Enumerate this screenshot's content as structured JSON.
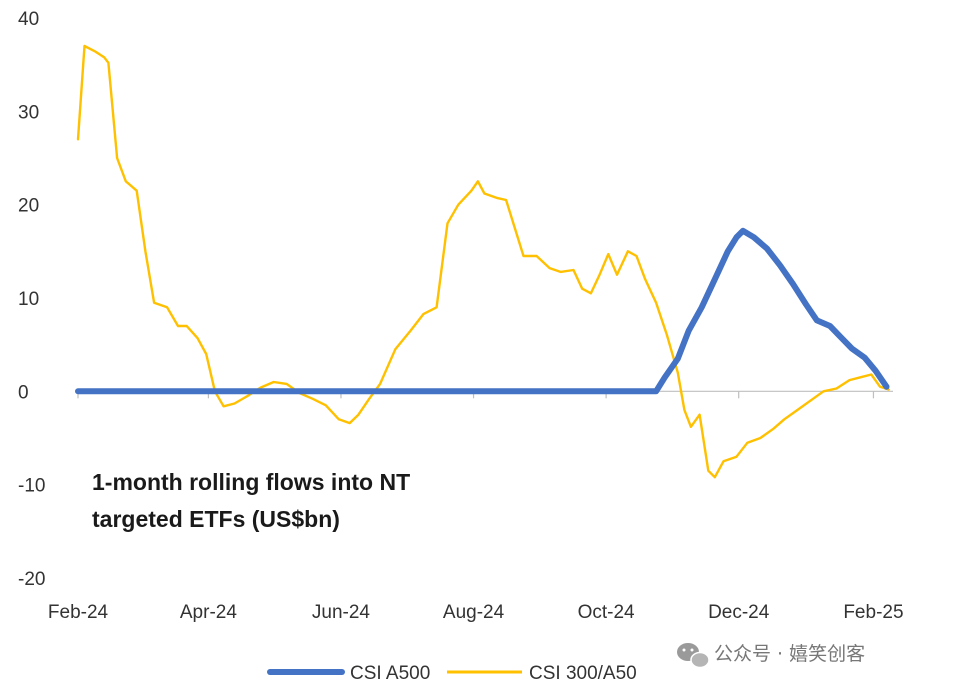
{
  "chart_data": {
    "type": "line",
    "title": "",
    "xlabel": "",
    "ylabel": "",
    "annotation_lines": [
      "1-month rolling flows into NT",
      "targeted ETFs (US$bn)"
    ],
    "ylim": [
      -20,
      40
    ],
    "yticks": [
      40,
      30,
      20,
      10,
      0,
      -10,
      -20
    ],
    "ytick_labels": [
      "40",
      "30",
      "20",
      "10",
      "0",
      "-10",
      "-20"
    ],
    "xlim": [
      "2024-02-01",
      "2025-02-10"
    ],
    "xticks": [
      "2024-02-01",
      "2024-04-01",
      "2024-06-01",
      "2024-08-01",
      "2024-10-01",
      "2024-12-01",
      "2025-02-01"
    ],
    "xtick_labels": [
      "Feb-24",
      "Apr-24",
      "Jun-24",
      "Aug-24",
      "Oct-24",
      "Dec-24",
      "Feb-25"
    ],
    "grid": false,
    "legend_position": "bottom",
    "series": [
      {
        "name": "CSI A500",
        "color": "#4472C4",
        "points": [
          [
            "2024-02-01",
            0
          ],
          [
            "2024-10-24",
            0
          ],
          [
            "2024-10-28",
            1.5
          ],
          [
            "2024-11-03",
            3.5
          ],
          [
            "2024-11-08",
            6.5
          ],
          [
            "2024-11-14",
            9
          ],
          [
            "2024-11-20",
            12
          ],
          [
            "2024-11-26",
            15
          ],
          [
            "2024-11-30",
            16.5
          ],
          [
            "2024-12-03",
            17.2
          ],
          [
            "2024-12-08",
            16.5
          ],
          [
            "2024-12-14",
            15.3
          ],
          [
            "2024-12-20",
            13.5
          ],
          [
            "2024-12-26",
            11.5
          ],
          [
            "2025-01-01",
            9.3
          ],
          [
            "2025-01-06",
            7.6
          ],
          [
            "2025-01-12",
            7
          ],
          [
            "2025-01-17",
            5.8
          ],
          [
            "2025-01-22",
            4.6
          ],
          [
            "2025-01-28",
            3.6
          ],
          [
            "2025-02-02",
            2.2
          ],
          [
            "2025-02-07",
            0.5
          ]
        ]
      },
      {
        "name": "CSI 300/A50",
        "color": "#FFC000",
        "points": [
          [
            "2024-02-01",
            27
          ],
          [
            "2024-02-04",
            37
          ],
          [
            "2024-02-09",
            36.4
          ],
          [
            "2024-02-13",
            35.8
          ],
          [
            "2024-02-15",
            35.2
          ],
          [
            "2024-02-19",
            25
          ],
          [
            "2024-02-23",
            22.5
          ],
          [
            "2024-02-28",
            21.5
          ],
          [
            "2024-03-03",
            15
          ],
          [
            "2024-03-07",
            9.5
          ],
          [
            "2024-03-13",
            9
          ],
          [
            "2024-03-18",
            7
          ],
          [
            "2024-03-22",
            7
          ],
          [
            "2024-03-27",
            5.7
          ],
          [
            "2024-03-31",
            4
          ],
          [
            "2024-04-04",
            0
          ],
          [
            "2024-04-08",
            -1.6
          ],
          [
            "2024-04-13",
            -1.3
          ],
          [
            "2024-04-19",
            -0.5
          ],
          [
            "2024-04-25",
            0.4
          ],
          [
            "2024-05-01",
            1
          ],
          [
            "2024-05-07",
            0.8
          ],
          [
            "2024-05-13",
            -0.2
          ],
          [
            "2024-05-19",
            -0.8
          ],
          [
            "2024-05-25",
            -1.5
          ],
          [
            "2024-05-31",
            -3
          ],
          [
            "2024-06-05",
            -3.4
          ],
          [
            "2024-06-09",
            -2.5
          ],
          [
            "2024-06-14",
            -0.8
          ],
          [
            "2024-06-19",
            0.8
          ],
          [
            "2024-06-26",
            4.5
          ],
          [
            "2024-07-03",
            6.5
          ],
          [
            "2024-07-09",
            8.3
          ],
          [
            "2024-07-15",
            9
          ],
          [
            "2024-07-20",
            18
          ],
          [
            "2024-07-25",
            20
          ],
          [
            "2024-07-31",
            21.5
          ],
          [
            "2024-08-03",
            22.5
          ],
          [
            "2024-08-06",
            21.2
          ],
          [
            "2024-08-12",
            20.7
          ],
          [
            "2024-08-16",
            20.5
          ],
          [
            "2024-08-20",
            17.5
          ],
          [
            "2024-08-24",
            14.5
          ],
          [
            "2024-08-30",
            14.5
          ],
          [
            "2024-09-05",
            13.2
          ],
          [
            "2024-09-10",
            12.8
          ],
          [
            "2024-09-16",
            13
          ],
          [
            "2024-09-20",
            11
          ],
          [
            "2024-09-24",
            10.5
          ],
          [
            "2024-09-28",
            12.5
          ],
          [
            "2024-10-02",
            14.7
          ],
          [
            "2024-10-06",
            12.5
          ],
          [
            "2024-10-11",
            15
          ],
          [
            "2024-10-15",
            14.5
          ],
          [
            "2024-10-19",
            12
          ],
          [
            "2024-10-24",
            9.5
          ],
          [
            "2024-10-29",
            6
          ],
          [
            "2024-11-03",
            2
          ],
          [
            "2024-11-06",
            -2
          ],
          [
            "2024-11-09",
            -3.8
          ],
          [
            "2024-11-13",
            -2.5
          ],
          [
            "2024-11-17",
            -8.5
          ],
          [
            "2024-11-20",
            -9.2
          ],
          [
            "2024-11-24",
            -7.5
          ],
          [
            "2024-11-30",
            -7
          ],
          [
            "2024-12-05",
            -5.5
          ],
          [
            "2024-12-11",
            -5
          ],
          [
            "2024-12-17",
            -4
          ],
          [
            "2024-12-22",
            -3
          ],
          [
            "2024-12-28",
            -2
          ],
          [
            "2025-01-03",
            -1
          ],
          [
            "2025-01-09",
            0
          ],
          [
            "2025-01-15",
            0.3
          ],
          [
            "2025-01-21",
            1.2
          ],
          [
            "2025-01-26",
            1.5
          ],
          [
            "2025-01-31",
            1.8
          ],
          [
            "2025-02-04",
            0.5
          ],
          [
            "2025-02-08",
            0.2
          ]
        ]
      }
    ]
  },
  "watermark": {
    "text": "公众号 · 嬉笑创客",
    "icon": "wechat-icon"
  }
}
